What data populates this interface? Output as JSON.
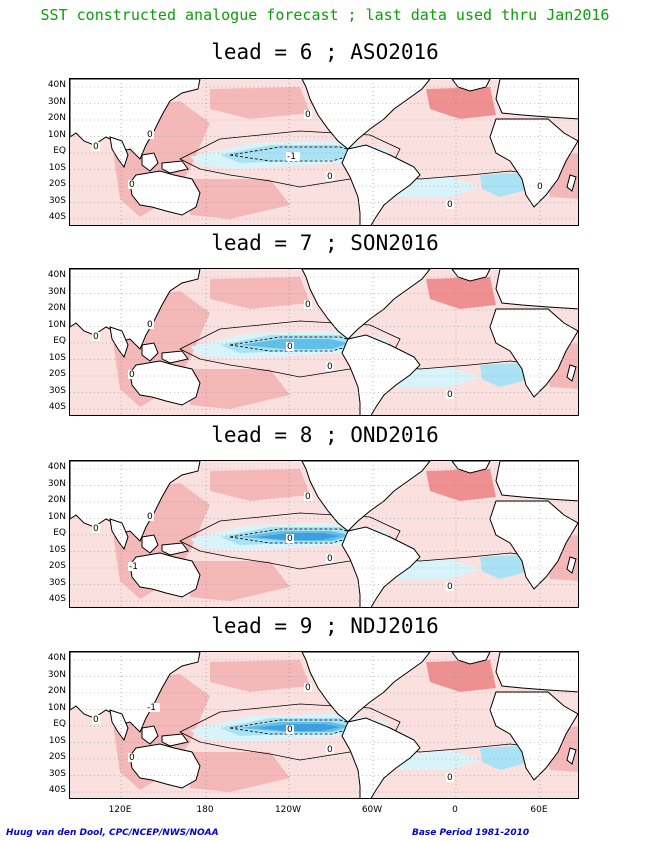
{
  "header": {
    "title": "SST constructed analogue forecast ; last data used thru Jan2016",
    "color": "#0aa00a"
  },
  "colors": {
    "warm1": "#fbe0e0",
    "warm2": "#f5b8b8",
    "warm3": "#ee9090",
    "cool1": "#d8f4fa",
    "cool2": "#a8e2f4",
    "cool3": "#5fc0ea",
    "cool4": "#3aa0e0",
    "land": "#ffffff",
    "footer": "#0000e0"
  },
  "lat_labels": [
    "40N",
    "30N",
    "20N",
    "10N",
    "EQ",
    "10S",
    "20S",
    "30S",
    "40S"
  ],
  "lon_labels": [
    "120E",
    "180",
    "120W",
    "60W",
    "0",
    "60E"
  ],
  "panels": [
    {
      "title": "lead = 6 ; ASO2016",
      "contour_labels": [
        "0",
        "0",
        "0",
        "0",
        "0",
        "-1",
        "0",
        "0"
      ]
    },
    {
      "title": "lead = 7 ; SON2016",
      "contour_labels": [
        "0",
        "0",
        "0",
        "0",
        "0",
        "0",
        "0"
      ]
    },
    {
      "title": "lead = 8 ; OND2016",
      "contour_labels": [
        "0",
        "0",
        "-1",
        "0",
        "0",
        "0",
        "0"
      ]
    },
    {
      "title": "lead = 9 ; NDJ2016",
      "contour_labels": [
        "0",
        "-1",
        "0",
        "0",
        "0",
        "0",
        "0"
      ]
    }
  ],
  "footer": {
    "left": "Huug van den Dool, CPC/NCEP/NWS/NOAA",
    "right": "Base Period 1981-2010"
  }
}
